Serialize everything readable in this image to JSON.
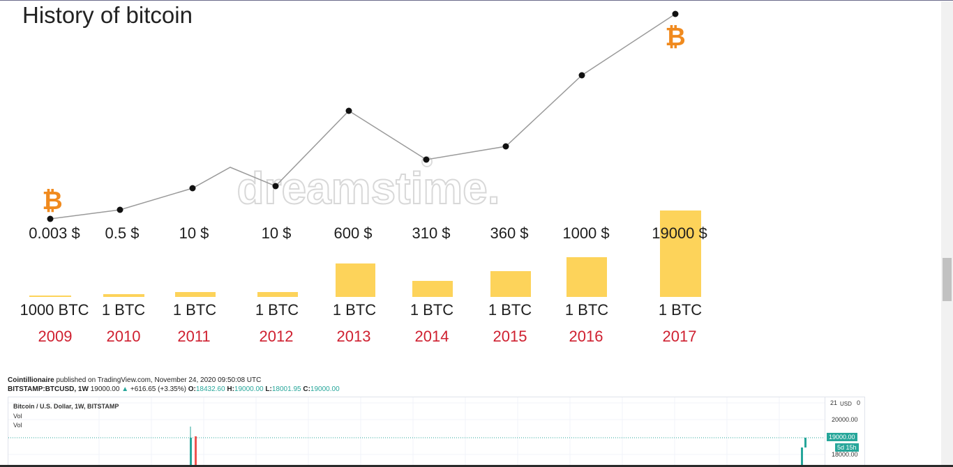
{
  "infographic": {
    "title": "History of bitcoin",
    "watermark": "dreamstime.",
    "prices": [
      "0.003 $",
      "0.5 $",
      "10 $",
      "10 $",
      "600 $",
      "310 $",
      "360 $",
      "1000 $",
      "19000 $"
    ],
    "amounts": [
      "1000 BTC",
      "1 BTC",
      "1 BTC",
      "1 BTC",
      "1 BTC",
      "1 BTC",
      "1 BTC",
      "1 BTC",
      "1 BTC"
    ],
    "years": [
      "2009",
      "2010",
      "2011",
      "2012",
      "2013",
      "2014",
      "2015",
      "2016",
      "2017"
    ],
    "bitcoin_icon": "bitcoin-icon",
    "colors": {
      "bar": "#fdd35a",
      "year": "#cf2030",
      "coin": "#f08a1e",
      "line": "#9a9a9a"
    }
  },
  "tradingview": {
    "author": "Cointillionaire",
    "published": "published on TradingView.com, November 24, 2020 09:50:08 UTC",
    "symbol": "BITSTAMP:BTCUSD, 1W",
    "price": "19000.00",
    "change": "+616.65 (+3.35%)",
    "open_label": "O:",
    "open": "18432.60",
    "high_label": "H:",
    "high": "19000.00",
    "low_label": "L:",
    "low": "18001.95",
    "close_label": "C:",
    "close": "19000.00",
    "chart_title": "Bitcoin / U.S. Dollar, 1W, BITSTAMP",
    "vol1": "Vol",
    "vol2": "Vol",
    "axis_top": "21",
    "currency": "USD",
    "axis_zero": "0",
    "level_20000": "20000.00",
    "level_19000": "19000.00",
    "countdown": "5d 15h",
    "level_18000": "18000.00",
    "colors": {
      "up": "#26a69a",
      "down": "#ef5350"
    }
  }
}
